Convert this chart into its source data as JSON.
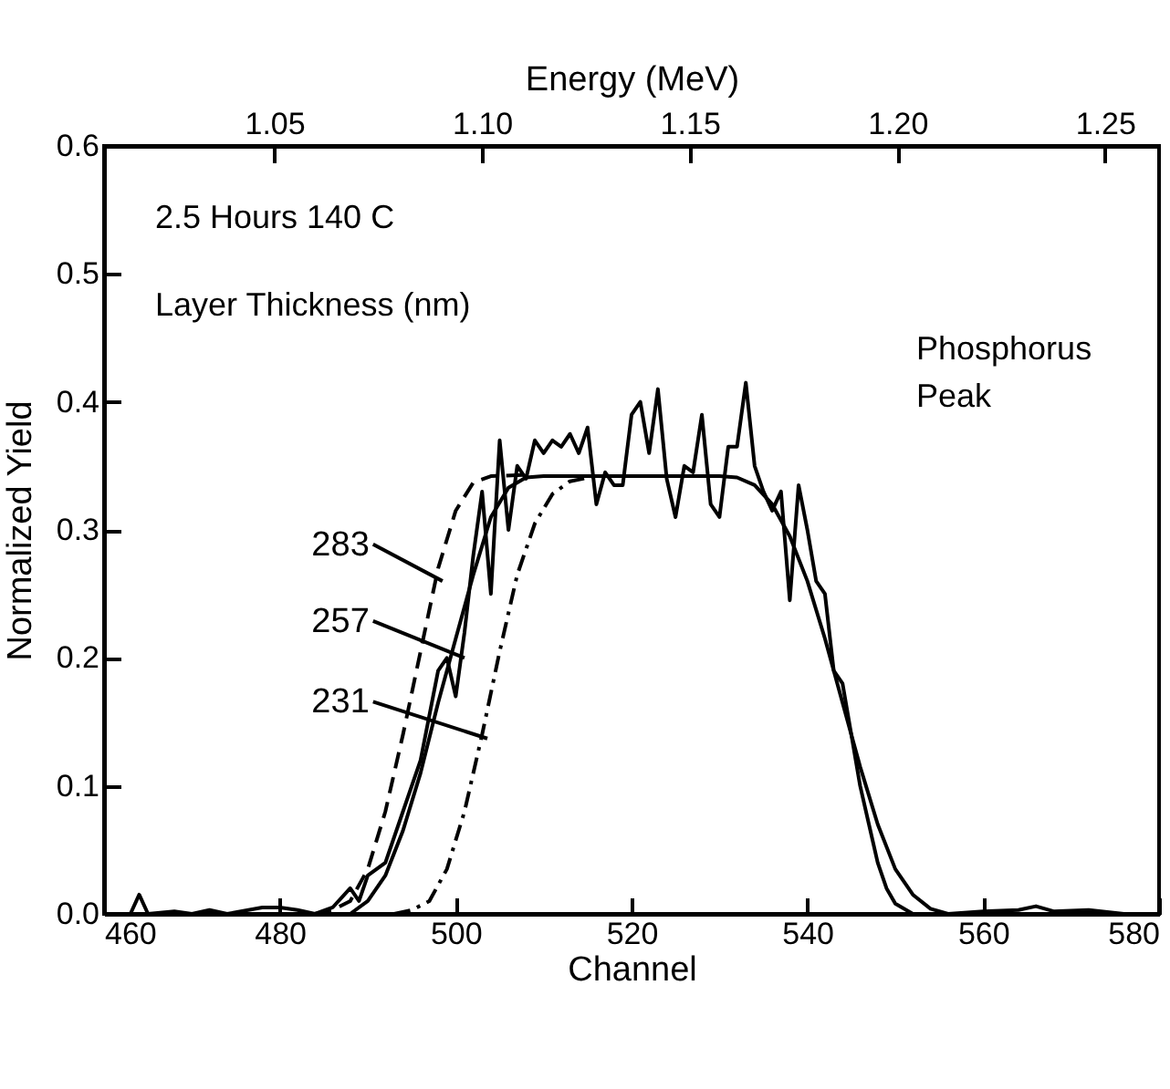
{
  "chart_data": {
    "type": "line",
    "xlabel": "Channel",
    "ylabel": "Normalized Yield",
    "x2label": "Energy (MeV)",
    "xlim": [
      460,
      580
    ],
    "xticks": [
      460,
      480,
      500,
      520,
      540,
      560,
      580
    ],
    "x2lim": [
      1.009,
      1.263
    ],
    "x2ticks": [
      1.05,
      {
        "value": 1.1,
        "label": "1.10"
      },
      1.15,
      {
        "value": 1.2,
        "label": "1.20"
      },
      1.25
    ],
    "ylim": [
      0,
      0.6
    ],
    "yticks": [
      {
        "value": 0,
        "label": "0.0"
      },
      0.1,
      0.2,
      0.3,
      0.4,
      0.5,
      0.6
    ],
    "grid": false,
    "marker": "none",
    "annotations": [
      "2.5 Hours 140 C",
      "Layer Thickness (nm)",
      "Phosphorus\nPeak",
      {
        "text": "283",
        "x": 498.5,
        "y": 0.26
      },
      {
        "text": "257",
        "x": 501,
        "y": 0.2
      },
      {
        "text": "231",
        "x": 503.6,
        "y": 0.137
      }
    ],
    "series": [
      {
        "color": "#000000",
        "line_style": "solid",
        "x": [
          460,
          463,
          464,
          465,
          468,
          470,
          472,
          474,
          478,
          480,
          482,
          484,
          486,
          488,
          489,
          490,
          492,
          494,
          496,
          498,
          499,
          500,
          501,
          502,
          503,
          504,
          505,
          506,
          507,
          508,
          509,
          510,
          511,
          512,
          513,
          514,
          515,
          516,
          517,
          518,
          519,
          520,
          521,
          522,
          523,
          524,
          525,
          526,
          527,
          528,
          529,
          530,
          531,
          532,
          533,
          534,
          535,
          536,
          537,
          538,
          539,
          540,
          541,
          542,
          543,
          544,
          545,
          546,
          547,
          548,
          549,
          550,
          552,
          556,
          560,
          564,
          566,
          568,
          572,
          576,
          580
        ],
        "values": [
          0,
          0,
          0.015,
          0,
          0.002,
          0,
          0.003,
          0,
          0.005,
          0.005,
          0.003,
          0,
          0.005,
          0.02,
          0.01,
          0.03,
          0.04,
          0.08,
          0.12,
          0.19,
          0.2,
          0.17,
          0.22,
          0.28,
          0.33,
          0.25,
          0.37,
          0.3,
          0.35,
          0.34,
          0.37,
          0.36,
          0.37,
          0.365,
          0.375,
          0.36,
          0.38,
          0.32,
          0.345,
          0.335,
          0.335,
          0.39,
          0.4,
          0.36,
          0.41,
          0.34,
          0.31,
          0.35,
          0.345,
          0.39,
          0.32,
          0.31,
          0.365,
          0.365,
          0.415,
          0.35,
          0.33,
          0.315,
          0.33,
          0.245,
          0.335,
          0.3,
          0.26,
          0.25,
          0.19,
          0.18,
          0.14,
          0.1,
          0.07,
          0.04,
          0.02,
          0.008,
          0,
          0,
          0.002,
          0.003,
          0.006,
          0.002,
          0.003,
          0,
          0
        ]
      },
      {
        "color": "#000000",
        "line_style": "solid",
        "x": [
          460,
          488,
          490,
          492,
          494,
          496,
          498,
          500,
          502,
          504,
          506,
          508,
          510,
          530,
          532,
          534,
          536,
          538,
          540,
          542,
          544,
          546,
          548,
          550,
          552,
          554,
          556,
          580
        ],
        "values": [
          0,
          0,
          0.01,
          0.03,
          0.065,
          0.11,
          0.165,
          0.215,
          0.265,
          0.31,
          0.333,
          0.341,
          0.342,
          0.342,
          0.341,
          0.335,
          0.32,
          0.295,
          0.26,
          0.215,
          0.165,
          0.115,
          0.07,
          0.035,
          0.015,
          0.004,
          0,
          0
        ]
      },
      {
        "color": "#000000",
        "line_style": "dashed",
        "x": [
          484,
          486,
          488,
          490,
          492,
          494,
          496,
          498,
          500,
          502,
          504,
          508
        ],
        "values": [
          0,
          0.003,
          0.01,
          0.035,
          0.08,
          0.14,
          0.205,
          0.27,
          0.315,
          0.337,
          0.342,
          0.343
        ]
      },
      {
        "color": "#000000",
        "line_style": "dashdot",
        "x": [
          493,
          495,
          497,
          499,
          501,
          503,
          505,
          507,
          509,
          511,
          513,
          516
        ],
        "values": [
          0,
          0.003,
          0.01,
          0.035,
          0.08,
          0.14,
          0.205,
          0.265,
          0.305,
          0.328,
          0.338,
          0.342
        ]
      }
    ]
  }
}
